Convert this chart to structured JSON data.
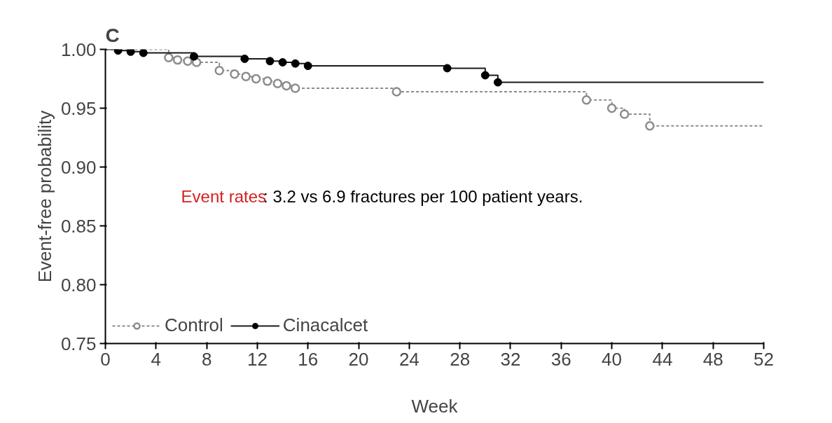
{
  "chart_data": {
    "type": "step",
    "title": "C",
    "xlabel": "Week",
    "ylabel": "Event-free probability",
    "annotations": [
      "Event rates",
      ": 3.2 vs 6.9 fractures per 100 patient years."
    ],
    "xlim": [
      0,
      52
    ],
    "xticks": [
      0,
      4,
      8,
      12,
      16,
      20,
      24,
      28,
      32,
      36,
      40,
      44,
      48,
      52
    ],
    "ylim": [
      0.75,
      1.0
    ],
    "yticks": [
      {
        "value": 0.75,
        "label": "0.75"
      },
      {
        "value": 0.8,
        "label": "0.80"
      },
      {
        "value": 0.85,
        "label": "0.85"
      },
      {
        "value": 0.9,
        "label": "0.90"
      },
      {
        "value": 0.95,
        "label": "0.95"
      },
      {
        "value": 1.0,
        "label": "1.00"
      }
    ],
    "grid": false,
    "legend": "bottom left",
    "series": [
      {
        "name": "Control",
        "color": "#8c8c8c",
        "line_style": "dashed",
        "x": [
          0,
          5,
          5.7,
          6.5,
          7.2,
          9,
          10.2,
          11.1,
          11.9,
          12.8,
          13.6,
          14.3,
          15,
          23,
          38,
          40,
          41,
          43,
          52
        ],
        "values": [
          1.0,
          0.993,
          0.991,
          0.99,
          0.989,
          0.982,
          0.979,
          0.977,
          0.975,
          0.973,
          0.971,
          0.969,
          0.967,
          0.964,
          0.957,
          0.95,
          0.945,
          0.935,
          0.935
        ]
      },
      {
        "type": "scatter",
        "color": "#8c8c8c",
        "marker": "open_circle",
        "x": [
          5,
          5.7,
          6.5,
          7.2,
          9,
          10.2,
          11.1,
          11.9,
          12.8,
          13.6,
          14.3,
          15,
          23,
          38,
          40,
          41,
          43
        ],
        "values": [
          0.993,
          0.991,
          0.99,
          0.989,
          0.982,
          0.979,
          0.977,
          0.975,
          0.973,
          0.971,
          0.969,
          0.967,
          0.964,
          0.957,
          0.95,
          0.945,
          0.935
        ]
      },
      {
        "name": "Cinacalcet",
        "color": "#1a1a1a",
        "line_style": "solid",
        "x": [
          0,
          1,
          2,
          3,
          7,
          11,
          13,
          14,
          15,
          16,
          27,
          30,
          31,
          52
        ],
        "values": [
          1.0,
          0.999,
          0.998,
          0.997,
          0.994,
          0.992,
          0.99,
          0.989,
          0.988,
          0.986,
          0.984,
          0.978,
          0.972,
          0.972
        ]
      },
      {
        "type": "scatter",
        "color": "#000000",
        "marker": "circle",
        "x": [
          1,
          2,
          3,
          7,
          11,
          13,
          14,
          15,
          16,
          27,
          30,
          31
        ],
        "values": [
          0.999,
          0.998,
          0.997,
          0.994,
          0.992,
          0.99,
          0.989,
          0.988,
          0.986,
          0.984,
          0.978,
          0.972
        ]
      }
    ]
  }
}
